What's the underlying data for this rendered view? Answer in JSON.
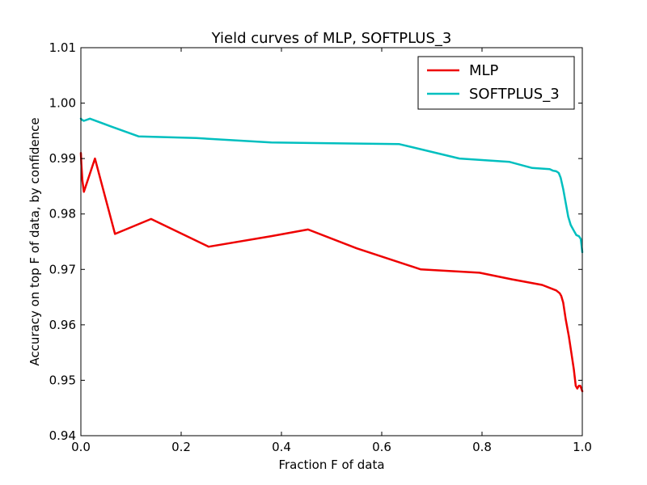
{
  "chart_data": {
    "type": "line",
    "title": "Yield curves of MLP, SOFTPLUS_3",
    "xlabel": "Fraction F of data",
    "ylabel": "Accuracy on top F of data, by confidence",
    "xlim": [
      0.0,
      1.0
    ],
    "ylim": [
      0.94,
      1.01
    ],
    "x_ticks": [
      "0.0",
      "0.2",
      "0.4",
      "0.6",
      "0.8",
      "1.0"
    ],
    "y_ticks": [
      "0.94",
      "0.95",
      "0.96",
      "0.97",
      "0.98",
      "0.99",
      "1.00",
      "1.01"
    ],
    "grid": false,
    "legend_position": "top-right",
    "series": [
      {
        "name": "MLP",
        "color": "#ee0000",
        "x": [
          0.0,
          0.001,
          0.003,
          0.006,
          0.028,
          0.068,
          0.14,
          0.255,
          0.38,
          0.453,
          0.55,
          0.678,
          0.795,
          0.86,
          0.92,
          0.948,
          0.955,
          0.958,
          0.962,
          0.967,
          0.973,
          0.978,
          0.983,
          0.987,
          0.99,
          0.993,
          0.996,
          0.998,
          1.0
        ],
        "y": [
          0.991,
          0.989,
          0.986,
          0.984,
          0.99,
          0.9764,
          0.9791,
          0.9741,
          0.976,
          0.9772,
          0.9738,
          0.97,
          0.9694,
          0.9682,
          0.9672,
          0.9662,
          0.9657,
          0.9652,
          0.964,
          0.961,
          0.958,
          0.955,
          0.952,
          0.949,
          0.9485,
          0.949,
          0.949,
          0.9485,
          0.948
        ]
      },
      {
        "name": "SOFTPLUS_3",
        "color": "#00bfbf",
        "x": [
          0.0,
          0.002,
          0.006,
          0.018,
          0.06,
          0.115,
          0.23,
          0.38,
          0.635,
          0.755,
          0.855,
          0.9,
          0.935,
          0.942,
          0.948,
          0.953,
          0.957,
          0.962,
          0.967,
          0.972,
          0.977,
          0.983,
          0.988,
          0.993,
          0.997,
          1.0
        ],
        "y": [
          0.9972,
          0.997,
          0.9968,
          0.9972,
          0.9958,
          0.994,
          0.9937,
          0.9929,
          0.9926,
          0.99,
          0.9894,
          0.9883,
          0.9881,
          0.9878,
          0.9877,
          0.9874,
          0.9865,
          0.9845,
          0.982,
          0.9795,
          0.978,
          0.977,
          0.9762,
          0.976,
          0.9755,
          0.9731
        ]
      }
    ]
  }
}
